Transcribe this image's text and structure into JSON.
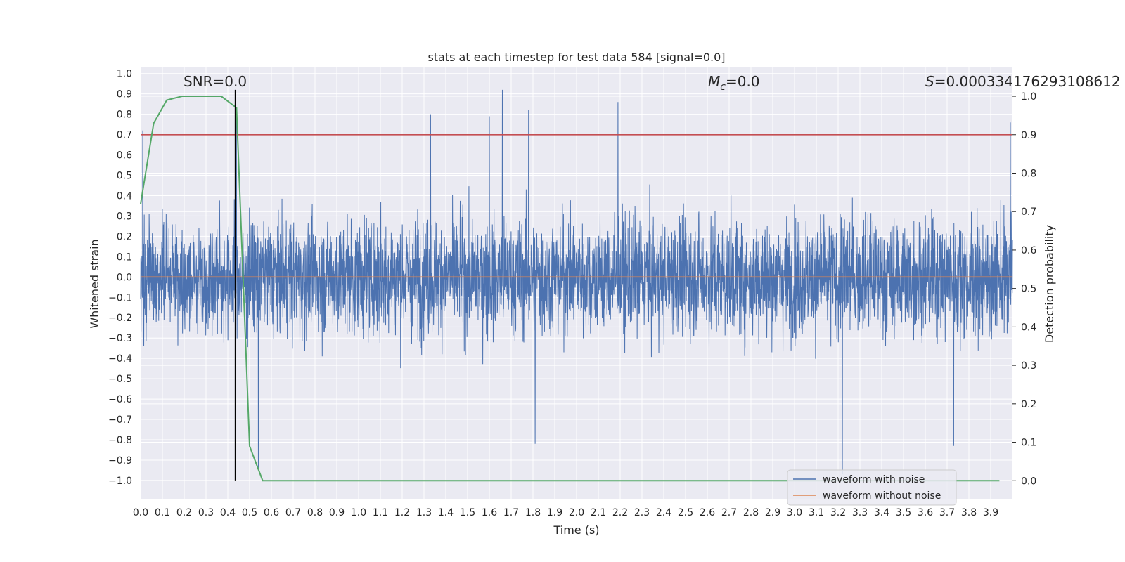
{
  "chart_data": {
    "type": "line",
    "title": "stats at each timestep for test data 584 [signal=0.0]",
    "xlabel": "Time (s)",
    "ylabel": "Whitened strain",
    "y2label": "Detection probability",
    "xlim": [
      0.0,
      4.0
    ],
    "ylim": [
      -1.09,
      1.03
    ],
    "y2lim": [
      -0.047,
      1.075
    ],
    "x_ticks": [
      "0.0",
      "0.1",
      "0.2",
      "0.3",
      "0.4",
      "0.5",
      "0.6",
      "0.7",
      "0.8",
      "0.9",
      "1.0",
      "1.1",
      "1.2",
      "1.3",
      "1.4",
      "1.5",
      "1.6",
      "1.7",
      "1.8",
      "1.9",
      "2.0",
      "2.1",
      "2.2",
      "2.3",
      "2.4",
      "2.5",
      "2.6",
      "2.7",
      "2.8",
      "2.9",
      "3.0",
      "3.1",
      "3.2",
      "3.3",
      "3.4",
      "3.5",
      "3.6",
      "3.7",
      "3.8",
      "3.9"
    ],
    "y_ticks": [
      "1.0",
      "0.9",
      "0.8",
      "0.7",
      "0.6",
      "0.5",
      "0.4",
      "0.3",
      "0.2",
      "0.1",
      "0.0",
      "−0.1",
      "−0.2",
      "−0.3",
      "−0.4",
      "−0.5",
      "−0.6",
      "−0.7",
      "−0.8",
      "−0.9",
      "−1.0"
    ],
    "y2_ticks": [
      "1.0",
      "0.9",
      "0.8",
      "0.7",
      "0.6",
      "0.5",
      "0.4",
      "0.3",
      "0.2",
      "0.1",
      "0.0"
    ],
    "annotations": {
      "snr": "SNR=0.0",
      "mc_symbol": "M",
      "mc_sub": "c",
      "mc_value": "=0.0",
      "s_symbol": "S",
      "s_value": "=0.00033417629310861",
      "s_overflow": "2"
    },
    "legend": {
      "position": "lower right",
      "entries": [
        "waveform with noise",
        "waveform without noise"
      ]
    },
    "series": [
      {
        "name": "waveform with noise",
        "color": "#4c72b0",
        "axis": "left",
        "description": "dense noisy whitened strain, roughly within -0.97 to 0.92",
        "y_range": [
          -0.97,
          0.92
        ],
        "peaks": [
          {
            "x": 0.01,
            "y": 0.72
          },
          {
            "x": 0.44,
            "y": 0.83
          },
          {
            "x": 1.33,
            "y": 0.8
          },
          {
            "x": 1.6,
            "y": 0.79
          },
          {
            "x": 1.66,
            "y": 0.92
          },
          {
            "x": 1.78,
            "y": 0.82
          },
          {
            "x": 2.19,
            "y": 0.86
          },
          {
            "x": 3.99,
            "y": 0.76
          },
          {
            "x": 0.54,
            "y": -0.95
          },
          {
            "x": 1.81,
            "y": -0.82
          },
          {
            "x": 3.22,
            "y": -0.97
          },
          {
            "x": 3.73,
            "y": -0.83
          }
        ]
      },
      {
        "name": "waveform without noise",
        "color": "#dd8452",
        "axis": "left",
        "x": [
          0.0,
          4.0
        ],
        "y": [
          0.0,
          0.0
        ]
      },
      {
        "name": "",
        "color": "#55a868",
        "axis": "right",
        "x": [
          0.0,
          0.06,
          0.12,
          0.19,
          0.25,
          0.31,
          0.37,
          0.44,
          0.5,
          0.56,
          0.62,
          0.7,
          1.0,
          1.5,
          2.0,
          2.5,
          3.0,
          3.5,
          3.94
        ],
        "y": [
          0.72,
          0.93,
          0.99,
          1.0,
          1.0,
          1.0,
          1.0,
          0.97,
          0.09,
          0.0,
          0.0,
          0.0,
          0.0,
          0.0,
          0.0,
          0.0,
          0.0,
          0.0,
          0.0
        ]
      }
    ],
    "threshold": {
      "axis": "right",
      "value": 0.9,
      "color": "#c44e52"
    },
    "event_marker": {
      "x": 0.435,
      "y_range": [
        -1.0,
        0.92
      ],
      "color": "#000000"
    }
  }
}
